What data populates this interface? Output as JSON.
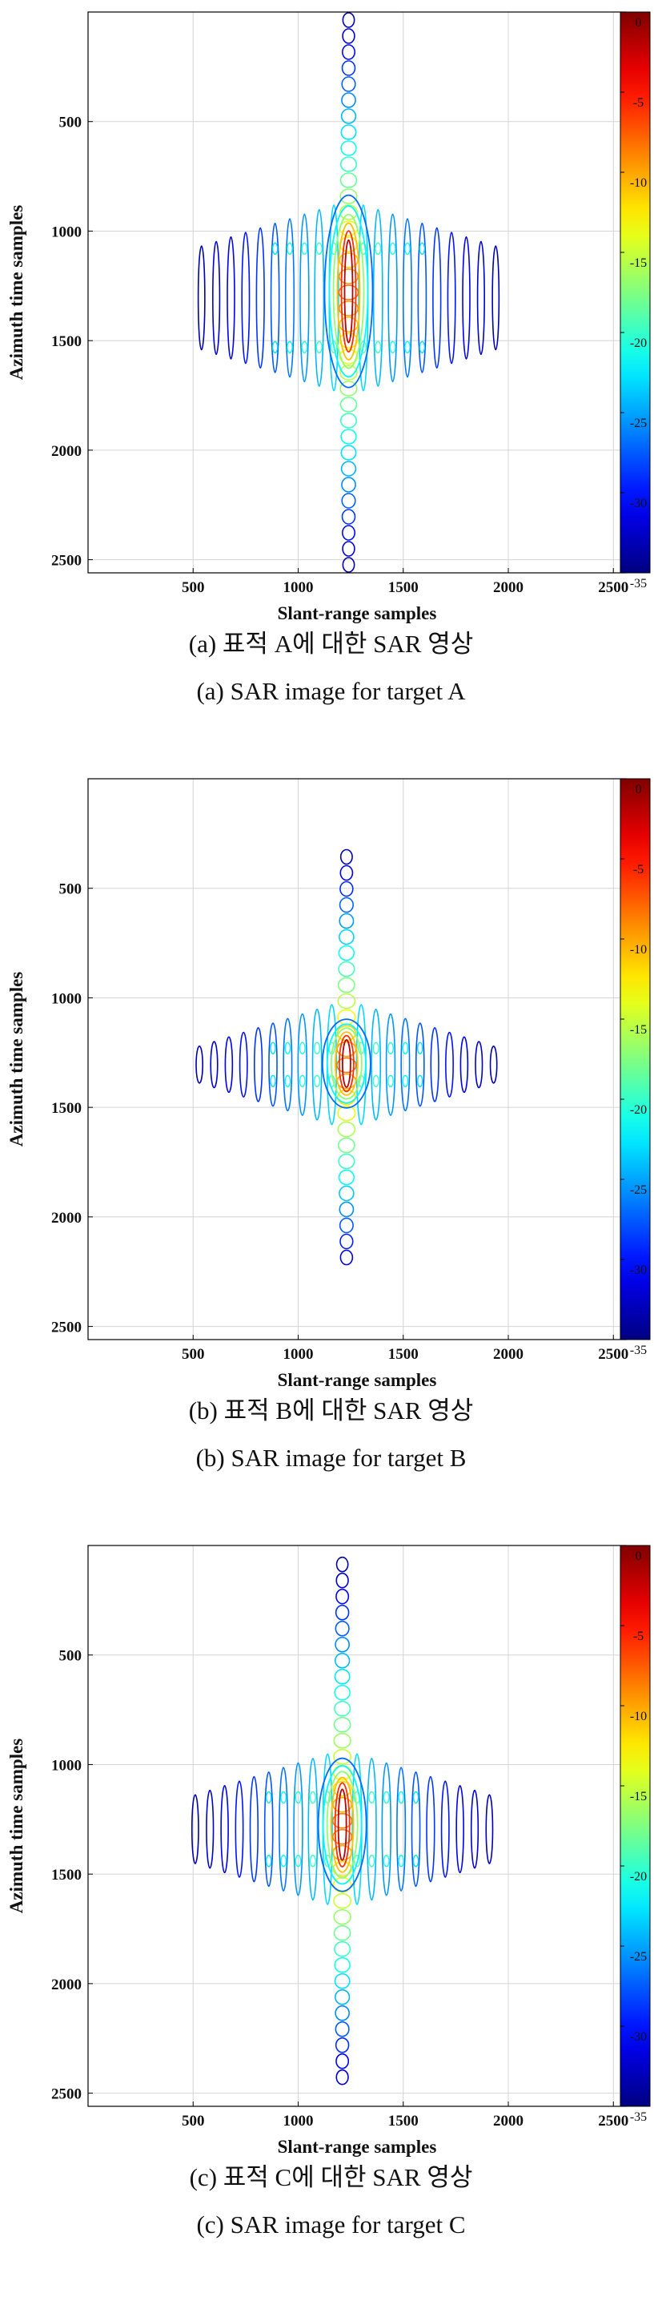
{
  "chart_data": [
    {
      "type": "contour",
      "panel_id": "a",
      "xlabel": "Slant-range samples",
      "ylabel": "Azimuth time samples",
      "xticks": [
        500,
        1000,
        1500,
        2000,
        2500
      ],
      "yticks": [
        500,
        1000,
        1500,
        2000,
        2500
      ],
      "xlim": [
        0,
        2560
      ],
      "ylim": [
        2560,
        0
      ],
      "grid": true,
      "colorbar": {
        "ticks": [
          0,
          -5,
          -10,
          -15,
          -20,
          -25,
          -30,
          -35
        ],
        "range": [
          -35,
          0
        ],
        "colormap": "jet"
      },
      "target": {
        "center_x": 1240,
        "center_y": 1280,
        "peak_y_span": [
          950,
          1600
        ],
        "azimuth_extent": [
          0,
          2560
        ],
        "range_extent": [
          520,
          1980
        ],
        "sidelobe_rows": [
          1080,
          1530
        ]
      },
      "caption_ko": "(a)  표적  A에  대한  SAR  영상",
      "caption_en": "(a)  SAR  image  for  target  A"
    },
    {
      "type": "contour",
      "panel_id": "b",
      "xlabel": "Slant-range samples",
      "ylabel": "Azimuth time samples",
      "xticks": [
        500,
        1000,
        1500,
        2000,
        2500
      ],
      "yticks": [
        500,
        1000,
        1500,
        2000,
        2500
      ],
      "xlim": [
        0,
        2560
      ],
      "ylim": [
        2560,
        0
      ],
      "grid": true,
      "colorbar": {
        "ticks": [
          0,
          -5,
          -10,
          -15,
          -20,
          -25,
          -30,
          -35
        ],
        "range": [
          -35,
          0
        ],
        "colormap": "jet"
      },
      "target": {
        "center_x": 1230,
        "center_y": 1300,
        "peak_y_span": [
          1150,
          1450
        ],
        "azimuth_extent": [
          320,
          2280
        ],
        "range_extent": [
          520,
          1960
        ],
        "sidelobe_rows": [
          1230,
          1380
        ]
      },
      "caption_ko": "(b)  표적  B에  대한  SAR  영상",
      "caption_en": "(b)  SAR  image  for  target  B"
    },
    {
      "type": "contour",
      "panel_id": "c",
      "xlabel": "Slant-range samples",
      "ylabel": "Azimuth time samples",
      "xticks": [
        500,
        1000,
        1500,
        2000,
        2500
      ],
      "yticks": [
        500,
        1000,
        1500,
        2000,
        2500
      ],
      "xlim": [
        0,
        2560
      ],
      "ylim": [
        2560,
        0
      ],
      "grid": true,
      "colorbar": {
        "ticks": [
          0,
          -5,
          -10,
          -15,
          -20,
          -25,
          -30,
          -35
        ],
        "range": [
          -35,
          0
        ],
        "colormap": "jet"
      },
      "target": {
        "center_x": 1210,
        "center_y": 1290,
        "peak_y_span": [
          1050,
          1500
        ],
        "azimuth_extent": [
          50,
          2500
        ],
        "range_extent": [
          500,
          1950
        ],
        "sidelobe_rows": [
          1150,
          1440
        ]
      },
      "caption_ko": "(c)  표적  C에  대한  SAR  영상",
      "caption_en": "(c)  SAR  image  for  target  C"
    }
  ]
}
